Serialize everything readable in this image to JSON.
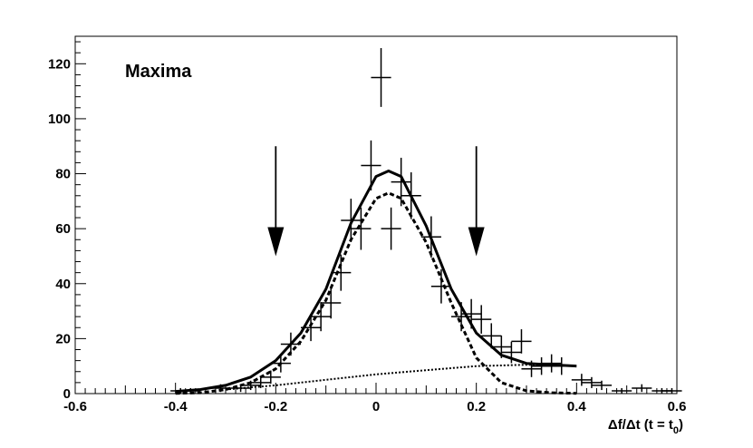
{
  "chart_data": {
    "type": "scatter",
    "title": "",
    "annotation": "Maxima",
    "xlabel": {
      "main": "Δf/Δt (t = t",
      "sub": "0",
      "close": ")"
    },
    "ylabel": "",
    "xlim": [
      -0.6,
      0.6
    ],
    "ylim": [
      0,
      130
    ],
    "x_ticks": [
      "-0.6",
      "-0.4",
      "-0.2",
      "0",
      "0.2",
      "0.4",
      "0.6"
    ],
    "y_ticks": [
      "0",
      "20",
      "40",
      "60",
      "80",
      "100",
      "120"
    ],
    "grid": false,
    "series": [
      {
        "kind": "data points with error bars",
        "x_bin_halfwidth": 0.02,
        "points": [
          {
            "x": -0.39,
            "y": 1,
            "err": 1
          },
          {
            "x": -0.37,
            "y": 1,
            "err": 1
          },
          {
            "x": -0.31,
            "y": 2,
            "err": 1.4
          },
          {
            "x": -0.27,
            "y": 2,
            "err": 1.4
          },
          {
            "x": -0.25,
            "y": 3,
            "err": 1.7
          },
          {
            "x": -0.23,
            "y": 4,
            "err": 2
          },
          {
            "x": -0.21,
            "y": 6,
            "err": 2.4
          },
          {
            "x": -0.19,
            "y": 11,
            "err": 3.3
          },
          {
            "x": -0.17,
            "y": 18,
            "err": 4.2
          },
          {
            "x": -0.13,
            "y": 24,
            "err": 4.9
          },
          {
            "x": -0.11,
            "y": 28,
            "err": 5.3
          },
          {
            "x": -0.09,
            "y": 33,
            "err": 5.7
          },
          {
            "x": -0.07,
            "y": 44,
            "err": 6.6
          },
          {
            "x": -0.05,
            "y": 63,
            "err": 7.9
          },
          {
            "x": -0.03,
            "y": 60,
            "err": 7.7
          },
          {
            "x": -0.01,
            "y": 83,
            "err": 9.1
          },
          {
            "x": 0.01,
            "y": 115,
            "err": 10.7
          },
          {
            "x": 0.03,
            "y": 60,
            "err": 7.7
          },
          {
            "x": 0.05,
            "y": 77,
            "err": 8.8
          },
          {
            "x": 0.07,
            "y": 72,
            "err": 8.5
          },
          {
            "x": 0.11,
            "y": 57,
            "err": 7.5
          },
          {
            "x": 0.13,
            "y": 39,
            "err": 6.2
          },
          {
            "x": 0.17,
            "y": 28,
            "err": 5.3
          },
          {
            "x": 0.19,
            "y": 29,
            "err": 5.4
          },
          {
            "x": 0.21,
            "y": 27,
            "err": 5.2
          },
          {
            "x": 0.23,
            "y": 21,
            "err": 4.6
          },
          {
            "x": 0.25,
            "y": 17,
            "err": 4.1
          },
          {
            "x": 0.27,
            "y": 15,
            "err": 3.9
          },
          {
            "x": 0.29,
            "y": 19,
            "err": 4.4
          },
          {
            "x": 0.31,
            "y": 9,
            "err": 3
          },
          {
            "x": 0.33,
            "y": 10,
            "err": 3.2
          },
          {
            "x": 0.35,
            "y": 11,
            "err": 3.3
          },
          {
            "x": 0.37,
            "y": 10,
            "err": 3.2
          },
          {
            "x": 0.41,
            "y": 5,
            "err": 2.2
          },
          {
            "x": 0.43,
            "y": 4,
            "err": 2
          },
          {
            "x": 0.45,
            "y": 3,
            "err": 1.7
          },
          {
            "x": 0.49,
            "y": 1,
            "err": 1
          },
          {
            "x": 0.53,
            "y": 2,
            "err": 1.4
          },
          {
            "x": 0.57,
            "y": 1,
            "err": 1
          },
          {
            "x": 0.59,
            "y": 1,
            "err": 1
          }
        ]
      },
      {
        "kind": "total fit (solid)",
        "style": "solid",
        "x": [
          -0.4,
          -0.35,
          -0.3,
          -0.25,
          -0.2,
          -0.15,
          -0.1,
          -0.05,
          0,
          0.025,
          0.05,
          0.1,
          0.15,
          0.2,
          0.25,
          0.3,
          0.35,
          0.4
        ],
        "y": [
          0.8,
          1.5,
          3,
          6,
          12,
          22,
          38,
          62,
          79,
          81,
          79,
          61,
          38,
          22,
          14,
          11,
          10.5,
          10
        ]
      },
      {
        "kind": "signal component (dashed)",
        "style": "dashed",
        "x": [
          -0.4,
          -0.35,
          -0.3,
          -0.25,
          -0.2,
          -0.15,
          -0.1,
          -0.05,
          0,
          0.025,
          0.05,
          0.1,
          0.15,
          0.2,
          0.25,
          0.3,
          0.35,
          0.4
        ],
        "y": [
          0.1,
          0.3,
          1.5,
          4,
          9,
          19,
          34,
          56,
          71,
          73,
          71,
          55,
          33,
          13,
          4,
          1,
          0.3,
          0.1
        ]
      },
      {
        "kind": "background component (dotted)",
        "style": "dotted",
        "x": [
          -0.3,
          -0.2,
          -0.1,
          0,
          0.1,
          0.2,
          0.3,
          0.35
        ],
        "y": [
          1.5,
          3,
          5,
          7,
          8.5,
          10,
          10.5,
          10.5
        ]
      }
    ],
    "arrows": [
      {
        "x": -0.2,
        "y_top": 90,
        "y_tip": 50,
        "direction": "down"
      },
      {
        "x": 0.2,
        "y_top": 90,
        "y_tip": 50,
        "direction": "down"
      }
    ]
  }
}
